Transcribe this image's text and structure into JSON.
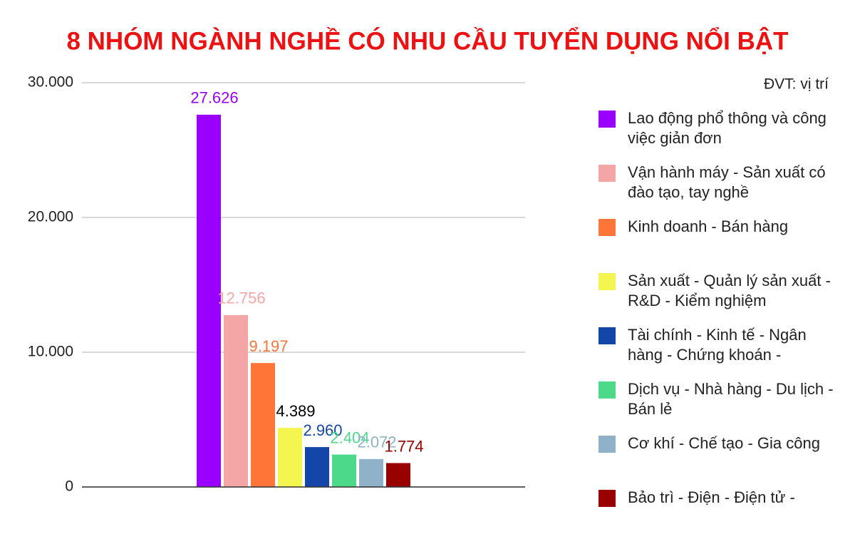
{
  "chart_data": {
    "type": "bar",
    "title": "8 NHÓM NGÀNH NGHỀ CÓ NHU CẦU TUYỂN DỤNG NỔI BẬT",
    "unit_note": "ĐVT: vị trí",
    "categories": [
      null
    ],
    "series": [
      {
        "name": "Lao động phổ thông và công việc giản đơn",
        "color": "#9900ff",
        "values": [
          27626
        ],
        "value_labels": [
          "27.626"
        ]
      },
      {
        "name": "Vận hành máy - Sản xuất có đào tạo, tay nghề",
        "color": "#f4a6a6",
        "values": [
          12756
        ],
        "value_labels": [
          "12.756"
        ]
      },
      {
        "name": "Kinh doanh - Bán hàng",
        "color": "#ff7537",
        "values": [
          9197
        ],
        "value_labels": [
          "9.197"
        ]
      },
      {
        "name": "Sản xuất - Quản lý sản xuất - R&D - Kiểm nghiệm",
        "color": "#f5f550",
        "label_color": "#000000",
        "values": [
          4389
        ],
        "value_labels": [
          "4.389"
        ]
      },
      {
        "name": "Tài chính - Kinh tế - Ngân hàng - Chứng khoán -",
        "color": "#1346a8",
        "values": [
          2960
        ],
        "value_labels": [
          "2.960"
        ]
      },
      {
        "name": "Dịch vụ - Nhà hàng - Du lịch - Bán lẻ",
        "color": "#4cd98a",
        "values": [
          2404
        ],
        "value_labels": [
          "2.404"
        ]
      },
      {
        "name": "Cơ khí - Chế tạo - Gia công",
        "color": "#8fb2c8",
        "values": [
          2072
        ],
        "value_labels": [
          "2.072"
        ]
      },
      {
        "name": "Bảo trì - Điện - Điện tử -",
        "color": "#990000",
        "values": [
          1774
        ],
        "value_labels": [
          "1.774"
        ]
      }
    ],
    "ylim": [
      0,
      30000
    ],
    "yticks": [
      0,
      {
        "value": 10000,
        "label": "10.000"
      },
      {
        "value": 20000,
        "label": "20.000"
      },
      {
        "value": 30000,
        "label": "30.000"
      }
    ],
    "grid": true,
    "legend": "right"
  }
}
